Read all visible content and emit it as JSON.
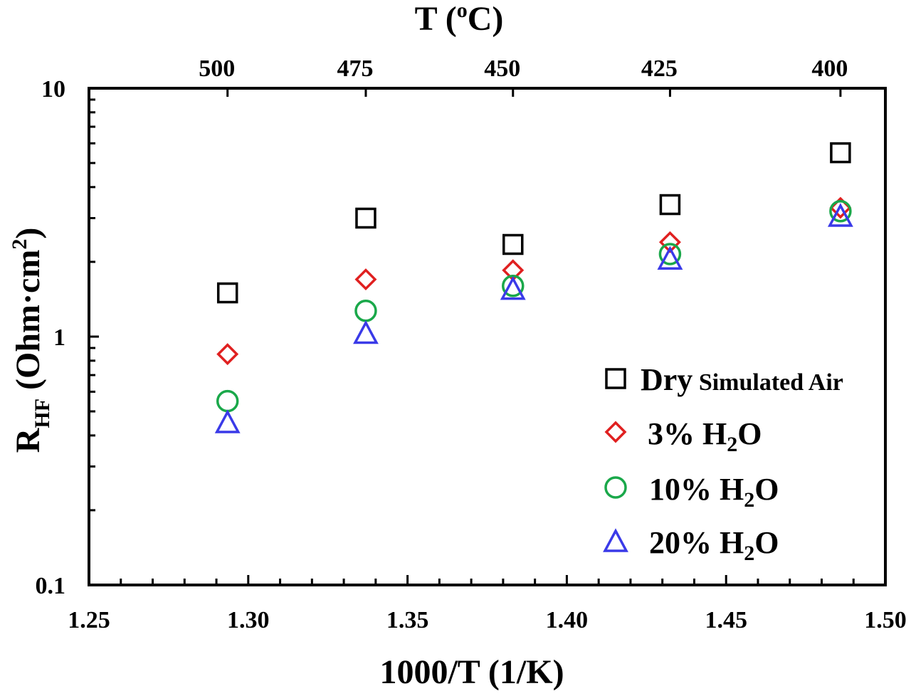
{
  "chart_data": {
    "type": "scatter",
    "title": "",
    "xlabel": "1000/T (1/K)",
    "ylabel": {
      "main": "R",
      "sub": "HF",
      "unit": " (Ohm·cm",
      "sup": "2",
      "close": ")"
    },
    "top_axis_label": {
      "main": "T (",
      "sup": "o",
      "rest": "C)"
    },
    "xlim": [
      1.25,
      1.5
    ],
    "ylim": [
      0.1,
      10
    ],
    "yscale": "log",
    "x_ticks": [
      "1.25",
      "1.30",
      "1.35",
      "1.40",
      "1.45",
      "1.50"
    ],
    "x_tick_values": [
      1.25,
      1.3,
      1.35,
      1.4,
      1.45,
      1.5
    ],
    "y_ticks": [
      "0.1",
      "1",
      "10"
    ],
    "y_tick_values": [
      0.1,
      1,
      10
    ],
    "top_ticks": [
      "500",
      "475",
      "450",
      "425",
      "400"
    ],
    "top_tick_values": [
      1.2935,
      1.3369,
      1.3831,
      1.4324,
      1.4859
    ],
    "grid": false,
    "legend_position": "bottom-right",
    "series": [
      {
        "name": "Dry Simulated Air",
        "legend_parts": {
          "big": "Dry",
          "small": " Simulated Air"
        },
        "marker": "square",
        "color": "#000000",
        "x": [
          1.2935,
          1.3369,
          1.3831,
          1.4324,
          1.4859
        ],
        "values": [
          1.5,
          3.0,
          2.35,
          3.4,
          5.5
        ]
      },
      {
        "name": "3% H2O",
        "legend_parts": {
          "pre": "3% H",
          "sub": "2",
          "post": "O"
        },
        "marker": "diamond",
        "color": "#e02020",
        "x": [
          1.2935,
          1.3369,
          1.3831,
          1.4324,
          1.4859
        ],
        "values": [
          0.85,
          1.7,
          1.85,
          2.4,
          3.3
        ]
      },
      {
        "name": "10% H2O",
        "legend_parts": {
          "pre": "10% H",
          "sub": "2",
          "post": "O"
        },
        "marker": "circle",
        "color": "#1aa84a",
        "x": [
          1.2935,
          1.3369,
          1.3831,
          1.4324,
          1.4859
        ],
        "values": [
          0.55,
          1.27,
          1.6,
          2.15,
          3.2
        ]
      },
      {
        "name": "20% H2O",
        "legend_parts": {
          "pre": "20% H",
          "sub": "2",
          "post": "O"
        },
        "marker": "triangle",
        "color": "#3a3ae8",
        "x": [
          1.2935,
          1.3369,
          1.3831,
          1.4324,
          1.4859
        ],
        "values": [
          0.45,
          1.03,
          1.55,
          2.05,
          3.05
        ]
      }
    ]
  }
}
